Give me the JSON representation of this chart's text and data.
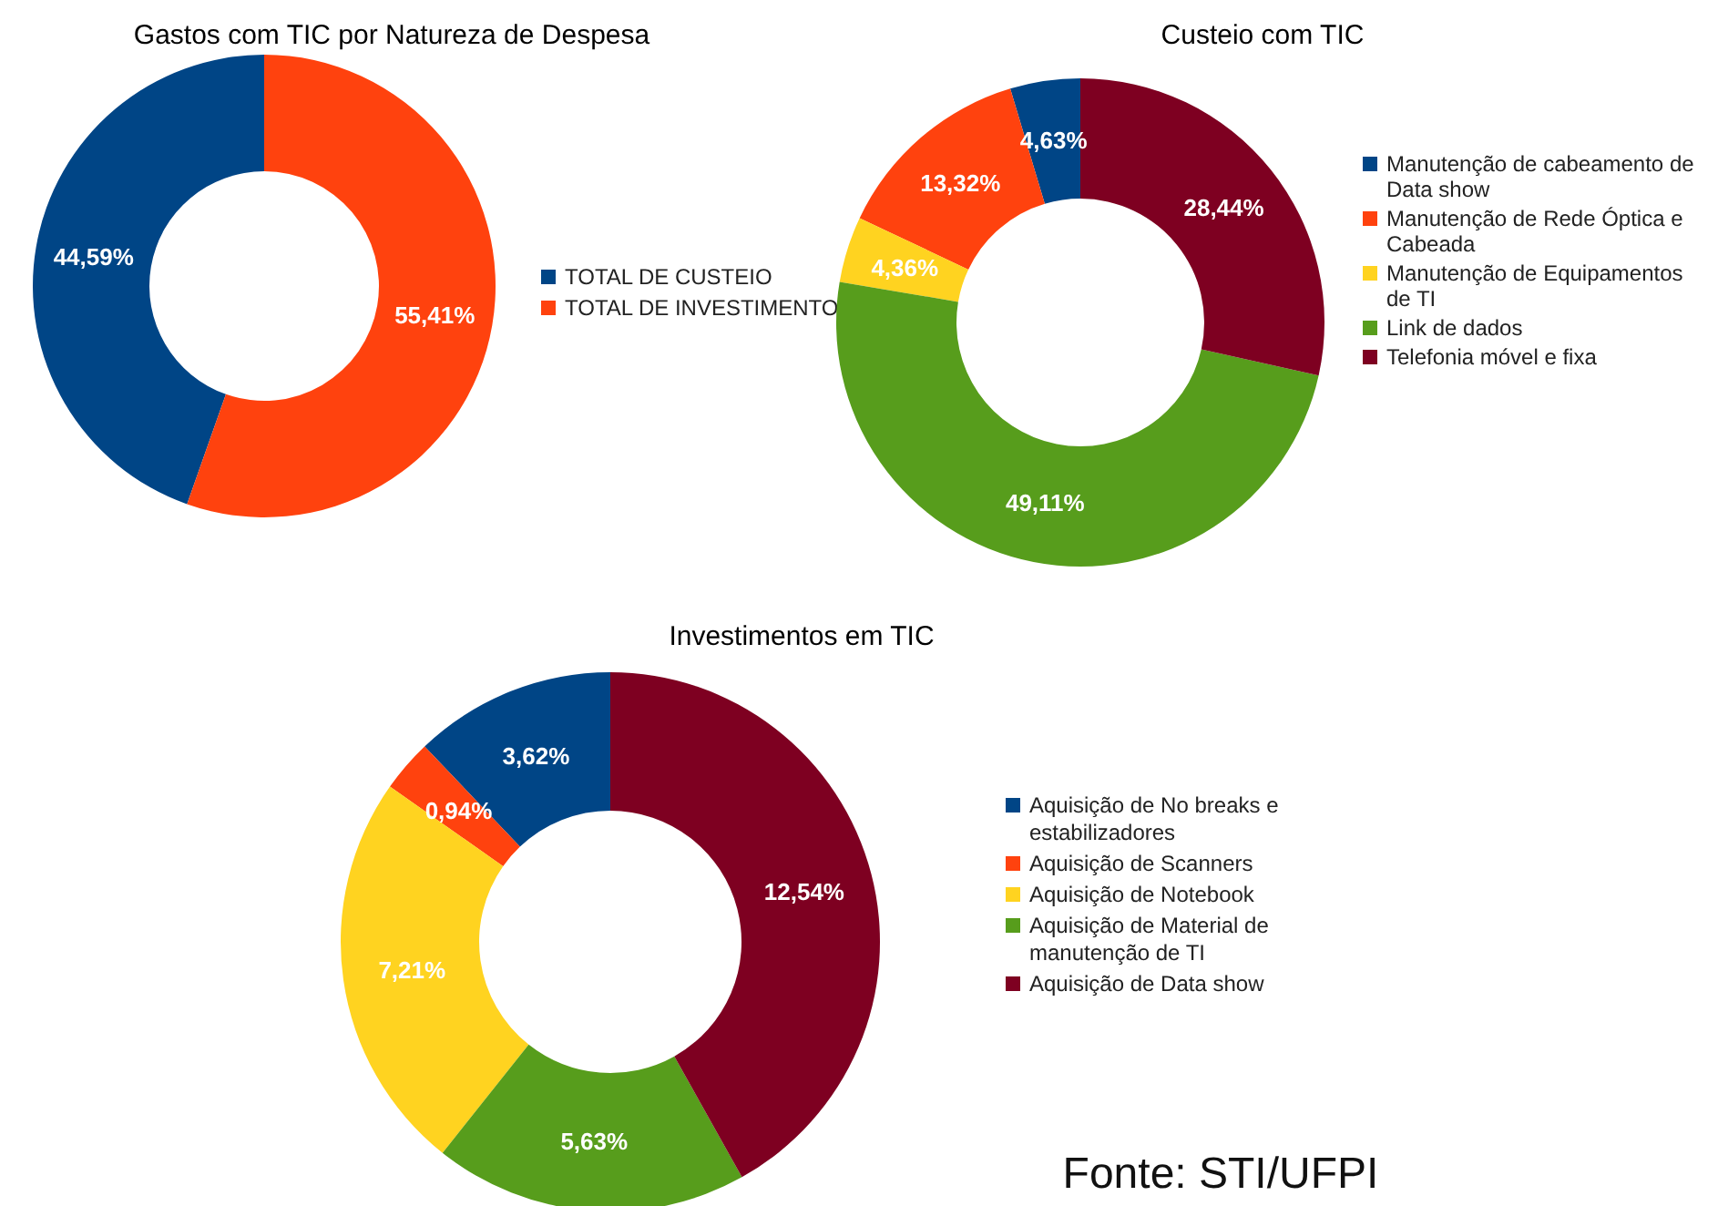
{
  "chart_data": [
    {
      "type": "donut",
      "title": "Gastos com TIC por Natureza de Despesa",
      "categories": [
        "TOTAL DE CUSTEIO",
        "TOTAL DE INVESTIMENTO"
      ],
      "values": [
        44.59,
        55.41
      ],
      "colors": [
        "#004586",
        "#ff420e"
      ],
      "value_labels": [
        "44,59%",
        "55,41%"
      ],
      "legend": "right"
    },
    {
      "type": "donut",
      "title": "Custeio com TIC",
      "categories": [
        "Manutenção de cabeamento de Data show",
        "Manutenção de Rede Óptica e Cabeada",
        "Manutenção de Equipamentos de TI",
        "Link de dados",
        "Telefonia móvel e fixa"
      ],
      "values": [
        4.63,
        13.32,
        4.36,
        49.11,
        28.44
      ],
      "colors": [
        "#004586",
        "#ff420e",
        "#ffd320",
        "#579d1c",
        "#7e0021"
      ],
      "value_labels": [
        "4,63%",
        "13,32%",
        "4,36%",
        "49,11%",
        "28,44%"
      ],
      "legend": "right"
    },
    {
      "type": "donut",
      "title": "Investimentos em TIC",
      "categories": [
        "Aquisição de No breaks e estabilizadores",
        "Aquisição de Scanners",
        "Aquisição de Notebook",
        "Aquisição de Material de manutenção de TI",
        "Aquisição de Data show"
      ],
      "values": [
        3.62,
        0.94,
        7.21,
        5.63,
        12.54
      ],
      "colors": [
        "#004586",
        "#ff420e",
        "#ffd320",
        "#579d1c",
        "#7e0021"
      ],
      "value_labels": [
        "3,62%",
        "0,94%",
        "7,21%",
        "5,63%",
        "12,54%"
      ],
      "legend": "right",
      "annotations": [
        "Fonte: STI/UFPI"
      ]
    }
  ]
}
